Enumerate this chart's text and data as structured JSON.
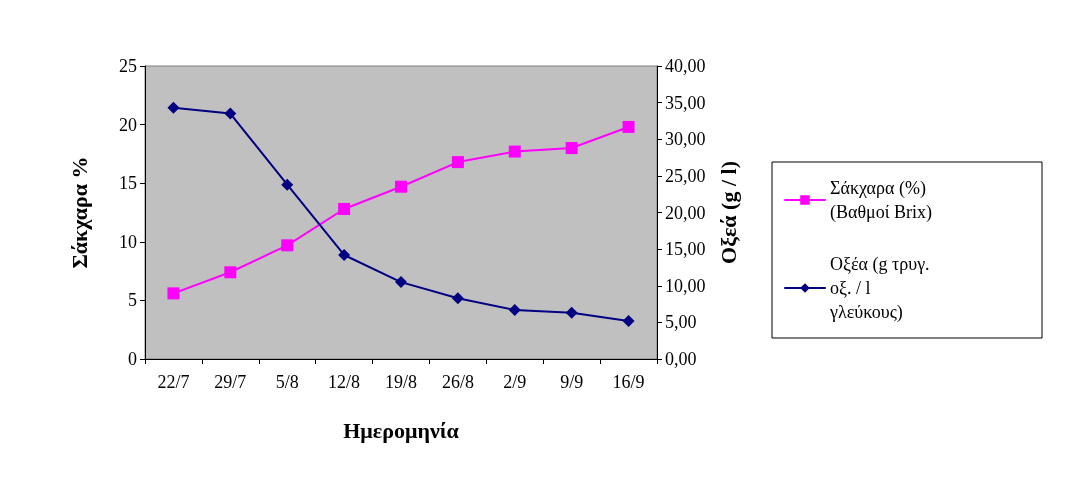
{
  "chart_data": {
    "type": "line",
    "xlabel": "Ημερομηνία",
    "ylabel": "Σάκχαρα %",
    "y2label": "Οξεά (g / l)",
    "categories": [
      "22/7",
      "29/7",
      "5/8",
      "12/8",
      "19/8",
      "26/8",
      "2/9",
      "9/9",
      "16/9"
    ],
    "series": [
      {
        "name": "Σάκχαρα (%) (Βαθμοί Brix)",
        "color": "#ff00ff",
        "marker": "square",
        "values": [
          5.6,
          7.4,
          9.7,
          12.8,
          14.7,
          16.8,
          17.7,
          18.0,
          19.8
        ]
      },
      {
        "name": "Οξέα (g τρυγ. οξ. / l γλεύκους)",
        "color": "#000080",
        "marker": "diamond",
        "axis": "y2",
        "values": [
          34.3,
          33.5,
          23.8,
          14.2,
          10.5,
          8.3,
          6.7,
          6.3,
          5.2
        ]
      }
    ],
    "ylim": [
      0,
      25
    ],
    "yticks": [
      0,
      5,
      10,
      15,
      20,
      25
    ],
    "y2lim": [
      0,
      40
    ],
    "y2ticks": [
      {
        "value": 0,
        "label": "0,00"
      },
      {
        "value": 5,
        "label": "5,00"
      },
      {
        "value": 10,
        "label": "10,00"
      },
      {
        "value": 15,
        "label": "15,00"
      },
      {
        "value": 20,
        "label": "20,00"
      },
      {
        "value": 25,
        "label": "25,00"
      },
      {
        "value": 30,
        "label": "30,00"
      },
      {
        "value": 35,
        "label": "35,00"
      },
      {
        "value": 40,
        "label": "40,00"
      }
    ],
    "grid": false,
    "legend": "right",
    "line_style": "solid"
  }
}
